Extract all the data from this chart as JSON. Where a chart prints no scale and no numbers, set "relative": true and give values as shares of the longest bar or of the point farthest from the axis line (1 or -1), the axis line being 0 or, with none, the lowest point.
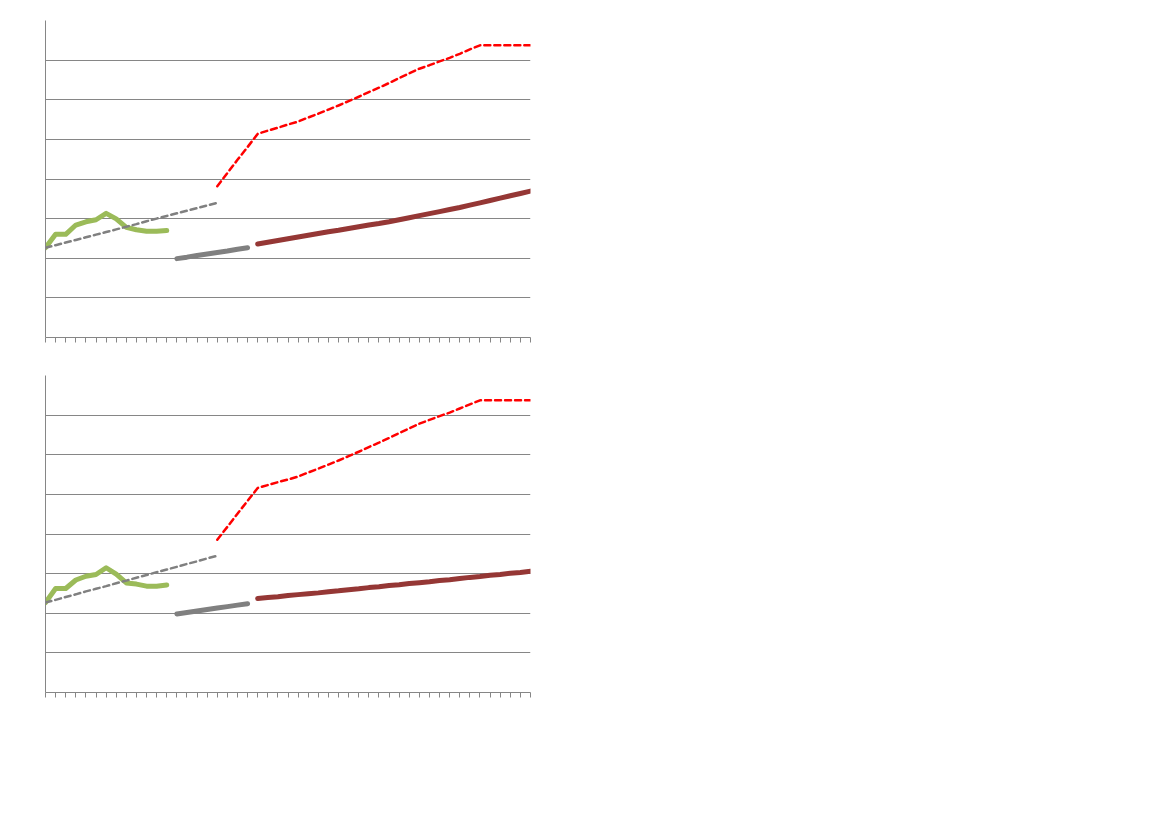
{
  "chart_data": [
    {
      "type": "line",
      "relative": true,
      "categories": [
        null,
        null,
        null,
        null,
        null,
        null,
        null,
        null,
        null,
        null,
        null,
        null,
        null,
        null,
        null,
        null,
        null,
        null,
        null,
        null,
        null,
        null,
        null,
        null,
        null,
        null,
        null,
        null,
        null,
        null,
        null,
        null,
        null,
        null,
        null,
        null,
        null,
        null,
        null,
        null,
        null,
        null,
        null,
        null,
        null,
        null,
        null,
        null,
        null
      ],
      "grid": "y",
      "series": [
        {
          "color": "#9bbb59",
          "line_style": "solid",
          "values": [
            0.307,
            0.353,
            0.353,
            0.385,
            0.396,
            0.403,
            0.425,
            0.406,
            0.377,
            0.369,
            0.364,
            0.364,
            0.366,
            null,
            null,
            null,
            null,
            null,
            null,
            null,
            null,
            null,
            null,
            null,
            null,
            null,
            null,
            null,
            null,
            null,
            null,
            null,
            null,
            null,
            null,
            null,
            null,
            null,
            null,
            null,
            null,
            null,
            null,
            null,
            null,
            null,
            null,
            null,
            null
          ]
        },
        {
          "color": "#808080",
          "line_style": "dashed",
          "values": [
            0.307,
            0.316,
            0.325,
            0.334,
            0.343,
            0.352,
            0.361,
            0.37,
            0.379,
            0.388,
            0.398,
            0.407,
            0.416,
            0.425,
            0.434,
            0.443,
            0.452,
            0.461,
            null,
            null,
            null,
            null,
            null,
            null,
            null,
            null,
            null,
            null,
            null,
            null,
            null,
            null,
            null,
            null,
            null,
            null,
            null,
            null,
            null,
            null,
            null,
            null,
            null,
            null,
            null,
            null,
            null,
            null,
            null
          ]
        },
        {
          "color": "#ff0000",
          "line_style": "dashed",
          "values": [
            null,
            null,
            null,
            null,
            null,
            null,
            null,
            null,
            null,
            null,
            null,
            null,
            null,
            null,
            null,
            null,
            null,
            0.518,
            0.563,
            0.608,
            0.652,
            0.697,
            0.708,
            0.718,
            0.729,
            0.739,
            0.753,
            0.766,
            0.78,
            0.794,
            0.809,
            0.824,
            0.84,
            0.855,
            0.871,
            0.888,
            0.904,
            0.92,
            0.932,
            0.945,
            0.957,
            0.971,
            0.986,
            1,
            1,
            1,
            1,
            1,
            1
          ]
        },
        {
          "color": "#808080",
          "line_style": "solid",
          "values": [
            null,
            null,
            null,
            null,
            null,
            null,
            null,
            null,
            null,
            null,
            null,
            null,
            null,
            0.27,
            0.275,
            0.281,
            0.286,
            0.291,
            0.296,
            0.302,
            0.307,
            null,
            null,
            null,
            null,
            null,
            null,
            null,
            null,
            null,
            null,
            null,
            null,
            null,
            null,
            null,
            null,
            null,
            null,
            null,
            null,
            null,
            null,
            null,
            null,
            null,
            null,
            null,
            null
          ]
        },
        {
          "color": "#953735",
          "line_style": "solid",
          "values": [
            null,
            null,
            null,
            null,
            null,
            null,
            null,
            null,
            null,
            null,
            null,
            null,
            null,
            null,
            null,
            null,
            null,
            null,
            null,
            null,
            null,
            0.32,
            0.326,
            0.332,
            0.338,
            0.344,
            0.35,
            0.356,
            0.362,
            0.367,
            0.373,
            0.379,
            0.385,
            0.39,
            0.396,
            0.403,
            0.41,
            0.417,
            0.424,
            0.431,
            0.438,
            0.445,
            0.453,
            0.461,
            0.469,
            0.477,
            0.485,
            0.493,
            0.501
          ]
        }
      ]
    },
    {
      "type": "line",
      "relative": true,
      "categories": [
        null,
        null,
        null,
        null,
        null,
        null,
        null,
        null,
        null,
        null,
        null,
        null,
        null,
        null,
        null,
        null,
        null,
        null,
        null,
        null,
        null,
        null,
        null,
        null,
        null,
        null,
        null,
        null,
        null,
        null,
        null,
        null,
        null,
        null,
        null,
        null,
        null,
        null,
        null,
        null,
        null,
        null,
        null,
        null,
        null,
        null,
        null,
        null,
        null
      ],
      "grid": "y",
      "series": [
        {
          "color": "#9bbb59",
          "line_style": "solid",
          "values": [
            0.308,
            0.356,
            0.356,
            0.385,
            0.398,
            0.404,
            0.427,
            0.405,
            0.375,
            0.371,
            0.364,
            0.364,
            0.368,
            null,
            null,
            null,
            null,
            null,
            null,
            null,
            null,
            null,
            null,
            null,
            null,
            null,
            null,
            null,
            null,
            null,
            null,
            null,
            null,
            null,
            null,
            null,
            null,
            null,
            null,
            null,
            null,
            null,
            null,
            null,
            null,
            null,
            null,
            null,
            null
          ]
        },
        {
          "color": "#808080",
          "line_style": "dashed",
          "values": [
            0.308,
            0.317,
            0.327,
            0.336,
            0.346,
            0.355,
            0.364,
            0.374,
            0.383,
            0.393,
            0.402,
            0.412,
            0.421,
            0.43,
            0.44,
            0.449,
            0.459,
            0.468,
            null,
            null,
            null,
            null,
            null,
            null,
            null,
            null,
            null,
            null,
            null,
            null,
            null,
            null,
            null,
            null,
            null,
            null,
            null,
            null,
            null,
            null,
            null,
            null,
            null,
            null,
            null,
            null,
            null,
            null,
            null
          ]
        },
        {
          "color": "#ff0000",
          "line_style": "dashed",
          "values": [
            null,
            null,
            null,
            null,
            null,
            null,
            null,
            null,
            null,
            null,
            null,
            null,
            null,
            null,
            null,
            null,
            null,
            0.523,
            0.567,
            0.612,
            0.656,
            0.7,
            0.71,
            0.72,
            0.729,
            0.739,
            0.753,
            0.766,
            0.78,
            0.794,
            0.809,
            0.824,
            0.84,
            0.855,
            0.871,
            0.888,
            0.904,
            0.92,
            0.933,
            0.946,
            0.958,
            0.972,
            0.986,
            1,
            1,
            1,
            1,
            1,
            1
          ]
        },
        {
          "color": "#808080",
          "line_style": "solid",
          "values": [
            null,
            null,
            null,
            null,
            null,
            null,
            null,
            null,
            null,
            null,
            null,
            null,
            null,
            0.269,
            0.274,
            0.279,
            0.284,
            0.289,
            0.294,
            0.299,
            0.304,
            null,
            null,
            null,
            null,
            null,
            null,
            null,
            null,
            null,
            null,
            null,
            null,
            null,
            null,
            null,
            null,
            null,
            null,
            null,
            null,
            null,
            null,
            null,
            null,
            null,
            null,
            null,
            null
          ]
        },
        {
          "color": "#953735",
          "line_style": "solid",
          "values": [
            null,
            null,
            null,
            null,
            null,
            null,
            null,
            null,
            null,
            null,
            null,
            null,
            null,
            null,
            null,
            null,
            null,
            null,
            null,
            null,
            null,
            0.322,
            0.325,
            0.328,
            0.332,
            0.335,
            0.338,
            0.341,
            0.345,
            0.348,
            0.352,
            0.355,
            0.359,
            0.362,
            0.366,
            0.369,
            0.373,
            0.376,
            0.379,
            0.383,
            0.386,
            0.39,
            0.394,
            0.397,
            0.401,
            0.404,
            0.408,
            0.411,
            0.415
          ]
        }
      ]
    }
  ]
}
